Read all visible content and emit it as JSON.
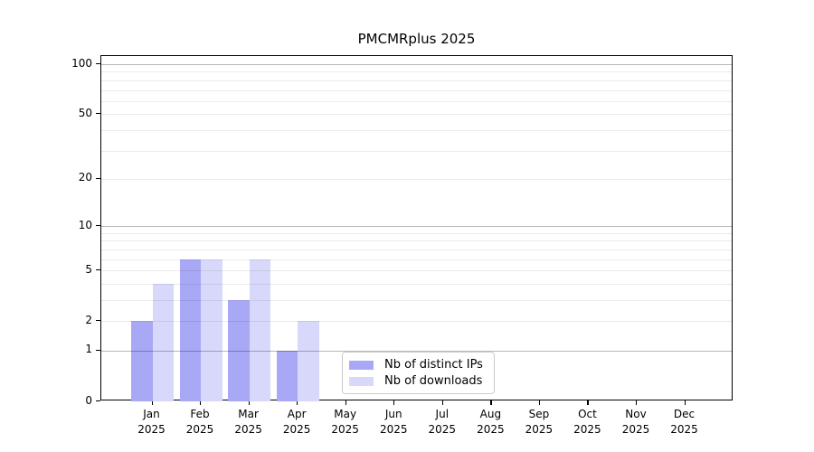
{
  "chart_data": {
    "type": "bar",
    "title": "PMCMRplus 2025",
    "x": {
      "categories": [
        "Jan",
        "Feb",
        "Mar",
        "Apr",
        "May",
        "Jun",
        "Jul",
        "Aug",
        "Sep",
        "Oct",
        "Nov",
        "Dec"
      ],
      "year_label": "2025"
    },
    "series": [
      {
        "name": "Nb of distinct IPs",
        "color": "#a8a8f6",
        "values": [
          2,
          6,
          3,
          1,
          0,
          0,
          0,
          0,
          0,
          0,
          0,
          0
        ]
      },
      {
        "name": "Nb of downloads",
        "color": "#d8d8fa",
        "values": [
          4,
          6,
          6,
          2,
          0,
          0,
          0,
          0,
          0,
          0,
          0,
          0
        ]
      }
    ],
    "y": {
      "scale": "log1p",
      "tick_values": [
        0,
        1,
        2,
        5,
        10,
        20,
        50,
        100
      ],
      "range": [
        0,
        112
      ]
    },
    "grid": {
      "major_lines": [
        1,
        10,
        100
      ],
      "minor_lines": [
        2,
        3,
        4,
        5,
        6,
        7,
        8,
        9,
        20,
        30,
        40,
        50,
        60,
        70,
        80,
        90
      ]
    },
    "legend": {
      "position": "inside lower-center-left"
    }
  }
}
